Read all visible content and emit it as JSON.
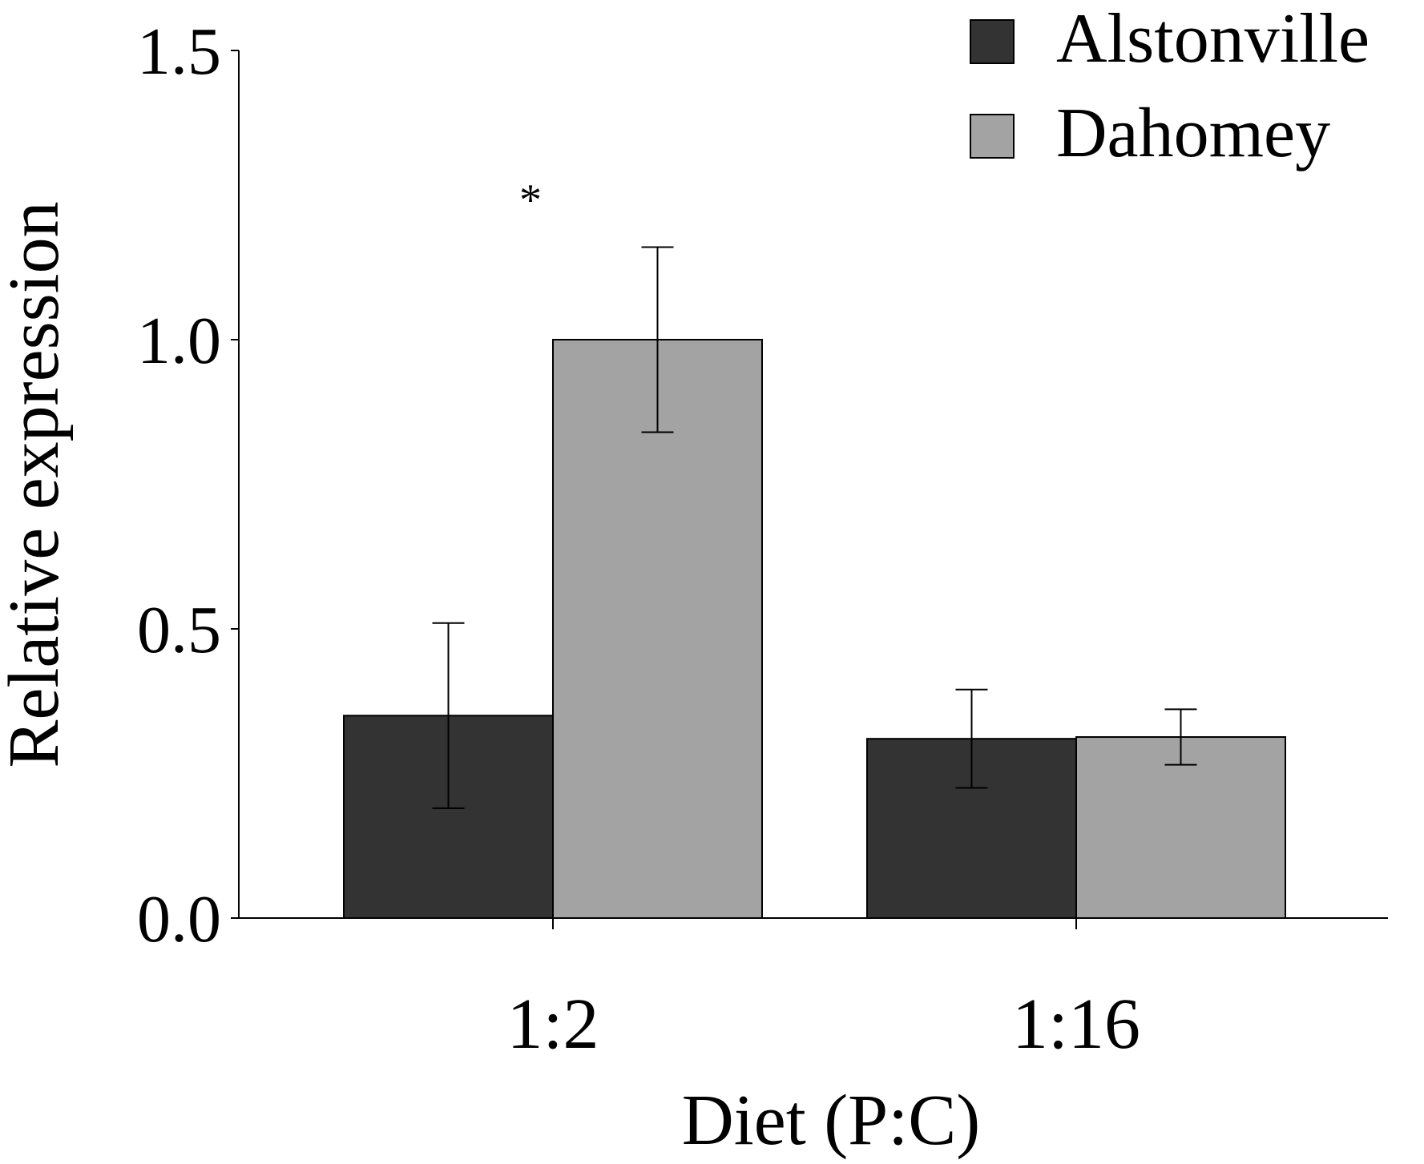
{
  "chart_data": {
    "type": "bar",
    "title": "",
    "xlabel": "Diet (P:C)",
    "ylabel": "Relative expression",
    "ylim": [
      0,
      1.5
    ],
    "yticks": [
      0.0,
      0.5,
      1.0,
      1.5
    ],
    "ytick_labels": [
      "0.0",
      "0.5",
      "1.0",
      "1.5"
    ],
    "grid": false,
    "legend_position": "top-right",
    "categories": [
      "1:2",
      "1:16"
    ],
    "series": [
      {
        "name": "Alstonville",
        "color": "#333333",
        "values": [
          0.35,
          0.31
        ],
        "errors": [
          0.16,
          0.085
        ]
      },
      {
        "name": "Dahomey",
        "color": "#a3a3a3",
        "values": [
          1.0,
          0.313
        ],
        "errors": [
          0.16,
          0.048
        ]
      }
    ],
    "annotations": [
      {
        "text": "*",
        "category_index": 0
      }
    ]
  }
}
